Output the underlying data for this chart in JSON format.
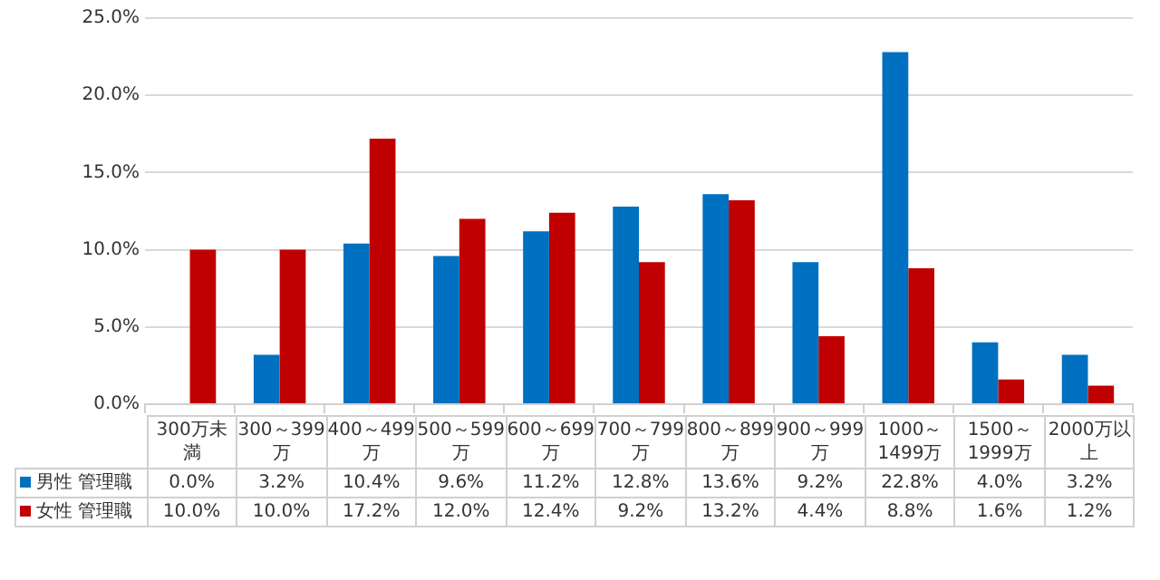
{
  "chart_data": {
    "type": "bar",
    "categories": [
      "300万未満",
      "300～399万",
      "400～499万",
      "500～599万",
      "600～699万",
      "700～799万",
      "800～899万",
      "900～999万",
      "1000～1499万",
      "1500～1999万",
      "2000万以上"
    ],
    "series": [
      {
        "name": "男性 管理職",
        "color": "#0070c0",
        "values": [
          0.0,
          3.2,
          10.4,
          9.6,
          11.2,
          12.8,
          13.6,
          9.2,
          22.8,
          4.0,
          3.2
        ],
        "value_labels": [
          "0.0%",
          "3.2%",
          "10.4%",
          "9.6%",
          "11.2%",
          "12.8%",
          "13.6%",
          "9.2%",
          "22.8%",
          "4.0%",
          "3.2%"
        ]
      },
      {
        "name": "女性 管理職",
        "color": "#c00000",
        "values": [
          10.0,
          10.0,
          17.2,
          12.0,
          12.4,
          9.2,
          13.2,
          4.4,
          8.8,
          1.6,
          1.2
        ],
        "value_labels": [
          "10.0%",
          "10.0%",
          "17.2%",
          "12.0%",
          "12.4%",
          "9.2%",
          "13.2%",
          "4.4%",
          "8.8%",
          "1.6%",
          "1.2%"
        ]
      }
    ],
    "ylim": [
      0,
      25
    ],
    "yticks": [
      {
        "value": 0,
        "label": "0.0%"
      },
      {
        "value": 5,
        "label": "5.0%"
      },
      {
        "value": 10,
        "label": "10.0%"
      },
      {
        "value": 15,
        "label": "15.0%"
      },
      {
        "value": 20,
        "label": "20.0%"
      },
      {
        "value": 25,
        "label": "25.0%"
      }
    ],
    "grid": "y",
    "legend": "bottom"
  }
}
